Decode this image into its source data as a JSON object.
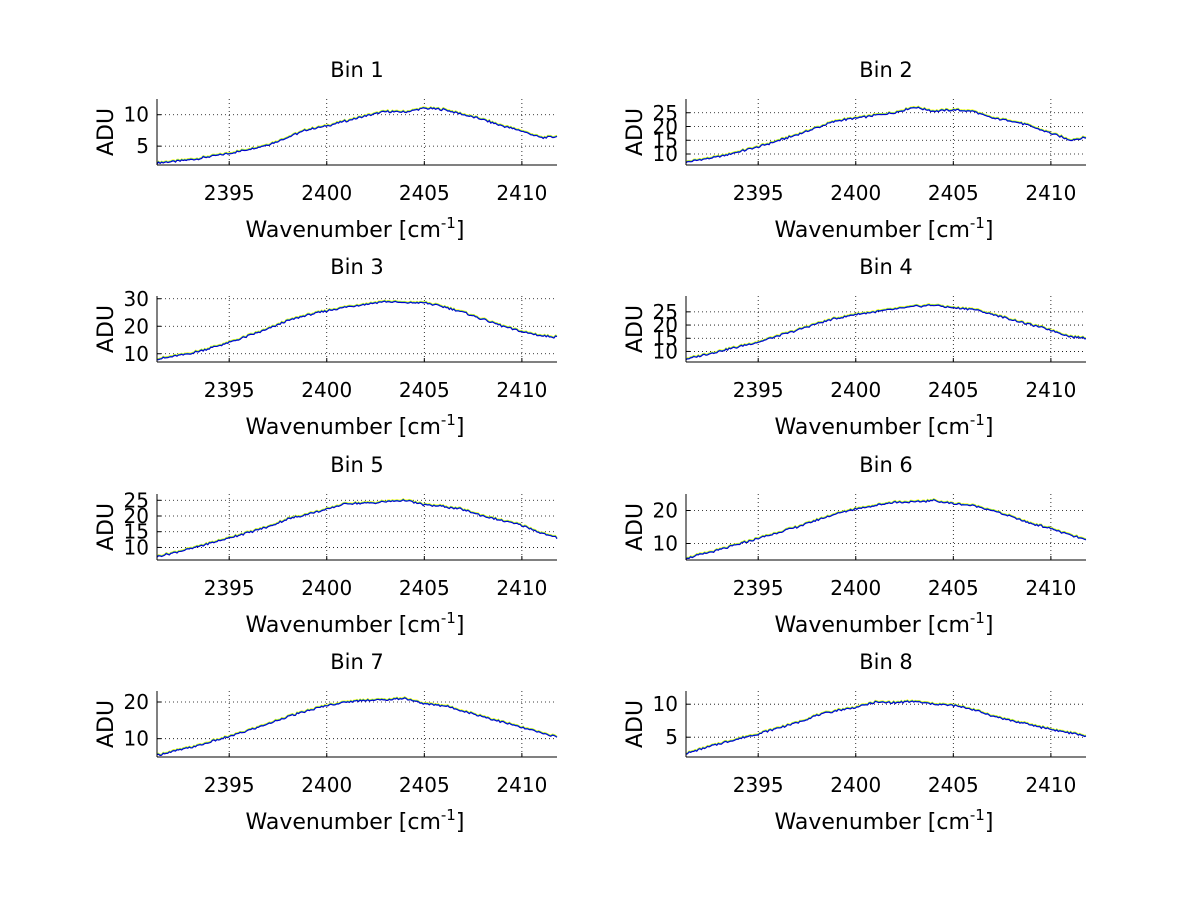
{
  "chart_data": [
    {
      "type": "line",
      "title": "Bin 1",
      "xlabel": "Wavenumber [cm",
      "xlabel_sup": "-1",
      "xlabel_tail": "]",
      "ylabel": "ADU",
      "xlim": [
        2391.3,
        2411.8
      ],
      "ylim": [
        2,
        12.5
      ],
      "xticks": [
        "2395",
        "2400",
        "2405",
        "2410"
      ],
      "yticks": [
        "5",
        "10"
      ],
      "grid": true,
      "series_colors": [
        "#FFFF00",
        "#20B2AA",
        "#0000CC"
      ],
      "x": [
        2391.3,
        2393,
        2395,
        2397,
        2398,
        2399,
        2400,
        2401,
        2402,
        2403,
        2404,
        2405,
        2406,
        2407,
        2408,
        2409,
        2410,
        2411,
        2411.8
      ],
      "y": [
        2.3,
        2.8,
        3.8,
        5.2,
        6.4,
        7.6,
        8.2,
        9.0,
        9.8,
        10.5,
        10.4,
        11.0,
        10.8,
        10.0,
        9.2,
        8.2,
        7.4,
        6.3,
        6.5
      ]
    },
    {
      "type": "line",
      "title": "Bin 2",
      "xlabel": "Wavenumber [cm",
      "xlabel_sup": "-1",
      "xlabel_tail": "]",
      "ylabel": "ADU",
      "xlim": [
        2391.3,
        2411.8
      ],
      "ylim": [
        6,
        30
      ],
      "xticks": [
        "2395",
        "2400",
        "2405",
        "2410"
      ],
      "yticks": [
        "10",
        "15",
        "20",
        "25"
      ],
      "grid": true,
      "series_colors": [
        "#FFFF00",
        "#20B2AA",
        "#0000CC"
      ],
      "x": [
        2391.3,
        2393,
        2395,
        2397,
        2398,
        2399,
        2400,
        2401,
        2402,
        2403,
        2404,
        2405,
        2406,
        2407,
        2408,
        2409,
        2410,
        2411,
        2411.8
      ],
      "y": [
        7,
        9,
        12.5,
        17,
        19.5,
        22,
        23,
        24,
        25,
        27,
        25.5,
        26,
        25.5,
        23,
        22,
        20,
        17.5,
        15,
        16
      ]
    },
    {
      "type": "line",
      "title": "Bin 3",
      "xlabel": "Wavenumber [cm",
      "xlabel_sup": "-1",
      "xlabel_tail": "]",
      "ylabel": "ADU",
      "xlim": [
        2391.3,
        2411.8
      ],
      "ylim": [
        7,
        31
      ],
      "xticks": [
        "2395",
        "2400",
        "2405",
        "2410"
      ],
      "yticks": [
        "10",
        "20",
        "30"
      ],
      "grid": true,
      "series_colors": [
        "#FFFF00",
        "#20B2AA",
        "#0000CC"
      ],
      "x": [
        2391.3,
        2393,
        2395,
        2397,
        2398,
        2399,
        2400,
        2401,
        2402,
        2403,
        2404,
        2405,
        2406,
        2407,
        2408,
        2409,
        2410,
        2411,
        2411.8
      ],
      "y": [
        8,
        10,
        14,
        19,
        22,
        24,
        25.5,
        27,
        28,
        29,
        28.5,
        28.5,
        27,
        25,
        22.5,
        20,
        18,
        16.5,
        16
      ]
    },
    {
      "type": "line",
      "title": "Bin 4",
      "xlabel": "Wavenumber [cm",
      "xlabel_sup": "-1",
      "xlabel_tail": "]",
      "ylabel": "ADU",
      "xlim": [
        2391.3,
        2411.8
      ],
      "ylim": [
        6,
        31
      ],
      "xticks": [
        "2395",
        "2400",
        "2405",
        "2410"
      ],
      "yticks": [
        "10",
        "15",
        "20",
        "25"
      ],
      "grid": true,
      "series_colors": [
        "#FFFF00",
        "#20B2AA",
        "#0000CC"
      ],
      "x": [
        2391.3,
        2393,
        2395,
        2397,
        2398,
        2399,
        2400,
        2401,
        2402,
        2403,
        2404,
        2405,
        2406,
        2407,
        2408,
        2409,
        2410,
        2411,
        2411.8
      ],
      "y": [
        7,
        10,
        13.5,
        18,
        20.5,
        22.5,
        24,
        25,
        26,
        27,
        27.5,
        26.5,
        26,
        24,
        22,
        20,
        18,
        15.5,
        15
      ]
    },
    {
      "type": "line",
      "title": "Bin 5",
      "xlabel": "Wavenumber [cm",
      "xlabel_sup": "-1",
      "xlabel_tail": "]",
      "ylabel": "ADU",
      "xlim": [
        2391.3,
        2411.8
      ],
      "ylim": [
        6,
        27
      ],
      "xticks": [
        "2395",
        "2400",
        "2405",
        "2410"
      ],
      "yticks": [
        "10",
        "15",
        "20",
        "25"
      ],
      "grid": true,
      "series_colors": [
        "#FFFF00",
        "#20B2AA",
        "#0000CC"
      ],
      "x": [
        2391.3,
        2393,
        2395,
        2397,
        2398,
        2399,
        2400,
        2401,
        2402,
        2403,
        2404,
        2405,
        2406,
        2407,
        2408,
        2409,
        2410,
        2411,
        2411.8
      ],
      "y": [
        7,
        9.5,
        13,
        16.5,
        19,
        20.5,
        22,
        24,
        24,
        24.5,
        25,
        23.5,
        23,
        22,
        20,
        18.5,
        17,
        14.5,
        13
      ]
    },
    {
      "type": "line",
      "title": "Bin 6",
      "xlabel": "Wavenumber [cm",
      "xlabel_sup": "-1",
      "xlabel_tail": "]",
      "ylabel": "ADU",
      "xlim": [
        2391.3,
        2411.8
      ],
      "ylim": [
        5,
        25
      ],
      "xticks": [
        "2395",
        "2400",
        "2405",
        "2410"
      ],
      "yticks": [
        "10",
        "20"
      ],
      "grid": true,
      "series_colors": [
        "#FFFF00",
        "#20B2AA",
        "#0000CC"
      ],
      "x": [
        2391.3,
        2393,
        2395,
        2397,
        2398,
        2399,
        2400,
        2401,
        2402,
        2403,
        2404,
        2405,
        2406,
        2407,
        2408,
        2409,
        2410,
        2411,
        2411.8
      ],
      "y": [
        5.5,
        8,
        11.5,
        15,
        17,
        19,
        20.5,
        21.5,
        22.5,
        22.5,
        23,
        22,
        21.5,
        20,
        18,
        16,
        14.5,
        12.5,
        11
      ]
    },
    {
      "type": "line",
      "title": "Bin 7",
      "xlabel": "Wavenumber [cm",
      "xlabel_sup": "-1",
      "xlabel_tail": "]",
      "ylabel": "ADU",
      "xlim": [
        2391.3,
        2411.8
      ],
      "ylim": [
        5,
        23
      ],
      "xticks": [
        "2395",
        "2400",
        "2405",
        "2410"
      ],
      "yticks": [
        "10",
        "20"
      ],
      "grid": true,
      "series_colors": [
        "#FFFF00",
        "#20B2AA",
        "#0000CC"
      ],
      "x": [
        2391.3,
        2393,
        2395,
        2397,
        2398,
        2399,
        2400,
        2401,
        2402,
        2403,
        2404,
        2405,
        2406,
        2407,
        2408,
        2409,
        2410,
        2411,
        2411.8
      ],
      "y": [
        5.5,
        7.5,
        10.5,
        14,
        16,
        17.5,
        19,
        20,
        20.5,
        20.5,
        21,
        19.5,
        19,
        17.5,
        16,
        14.5,
        13,
        11.5,
        10.5
      ]
    },
    {
      "type": "line",
      "title": "Bin 8",
      "xlabel": "Wavenumber [cm",
      "xlabel_sup": "-1",
      "xlabel_tail": "]",
      "ylabel": "ADU",
      "xlim": [
        2391.3,
        2411.8
      ],
      "ylim": [
        2,
        12
      ],
      "xticks": [
        "2395",
        "2400",
        "2405",
        "2410"
      ],
      "yticks": [
        "5",
        "10"
      ],
      "grid": true,
      "series_colors": [
        "#FFFF00",
        "#20B2AA",
        "#0000CC"
      ],
      "x": [
        2391.3,
        2393,
        2395,
        2397,
        2398,
        2399,
        2400,
        2401,
        2402,
        2403,
        2404,
        2405,
        2406,
        2407,
        2408,
        2409,
        2410,
        2411,
        2411.8
      ],
      "y": [
        2.5,
        4,
        5.5,
        7.2,
        8.3,
        9,
        9.5,
        10.3,
        10.2,
        10.4,
        10,
        9.8,
        9.2,
        8.2,
        7.5,
        6.8,
        6.2,
        5.6,
        5.2
      ]
    }
  ]
}
